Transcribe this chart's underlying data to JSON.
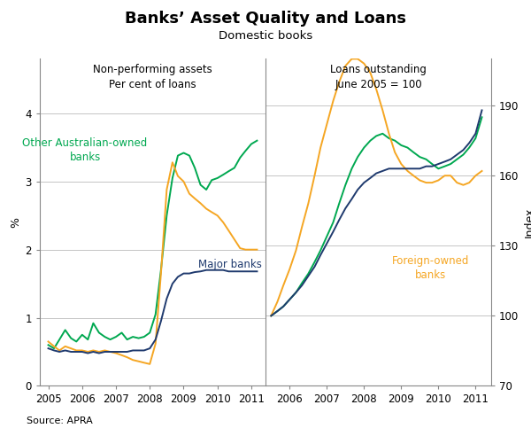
{
  "title": "Banks’ Asset Quality and Loans",
  "subtitle": "Domestic books",
  "left_panel_title": "Non-performing assets\nPer cent of loans",
  "right_panel_title": "Loans outstanding\nJune 2005 = 100",
  "left_ylabel": "%",
  "right_ylabel": "Index",
  "source": "Source: APRA",
  "colors": {
    "green": "#00A850",
    "orange": "#F5A623",
    "navy": "#1F3A6E"
  },
  "left_ylim": [
    0,
    4.8
  ],
  "left_yticks": [
    0,
    1,
    2,
    3,
    4
  ],
  "right_ylim": [
    70,
    210
  ],
  "right_yticks": [
    70,
    100,
    130,
    160,
    190
  ],
  "xticks_left": [
    2005,
    2006,
    2007,
    2008,
    2009,
    2010,
    2011
  ],
  "xticks_right": [
    2006,
    2007,
    2008,
    2009,
    2010,
    2011
  ],
  "left_npa_green": {
    "x": [
      2005.0,
      2005.17,
      2005.33,
      2005.5,
      2005.67,
      2005.83,
      2006.0,
      2006.17,
      2006.33,
      2006.5,
      2006.67,
      2006.83,
      2007.0,
      2007.17,
      2007.33,
      2007.5,
      2007.67,
      2007.83,
      2008.0,
      2008.17,
      2008.33,
      2008.5,
      2008.67,
      2008.83,
      2009.0,
      2009.17,
      2009.33,
      2009.5,
      2009.67,
      2009.83,
      2010.0,
      2010.17,
      2010.33,
      2010.5,
      2010.67,
      2010.83,
      2011.0,
      2011.17
    ],
    "y": [
      0.6,
      0.55,
      0.68,
      0.82,
      0.7,
      0.65,
      0.75,
      0.68,
      0.92,
      0.78,
      0.72,
      0.68,
      0.72,
      0.78,
      0.68,
      0.72,
      0.7,
      0.72,
      0.78,
      1.05,
      1.7,
      2.5,
      3.05,
      3.38,
      3.42,
      3.38,
      3.2,
      2.95,
      2.88,
      3.02,
      3.05,
      3.1,
      3.15,
      3.2,
      3.35,
      3.45,
      3.55,
      3.6
    ]
  },
  "left_npa_orange": {
    "x": [
      2005.0,
      2005.17,
      2005.33,
      2005.5,
      2005.67,
      2005.83,
      2006.0,
      2006.17,
      2006.33,
      2006.5,
      2006.67,
      2006.83,
      2007.0,
      2007.17,
      2007.33,
      2007.5,
      2007.67,
      2007.83,
      2008.0,
      2008.17,
      2008.33,
      2008.5,
      2008.67,
      2008.83,
      2009.0,
      2009.17,
      2009.33,
      2009.5,
      2009.67,
      2009.83,
      2010.0,
      2010.17,
      2010.33,
      2010.5,
      2010.67,
      2010.83,
      2011.0,
      2011.17
    ],
    "y": [
      0.65,
      0.58,
      0.52,
      0.58,
      0.55,
      0.52,
      0.52,
      0.5,
      0.52,
      0.5,
      0.52,
      0.5,
      0.48,
      0.45,
      0.42,
      0.38,
      0.36,
      0.34,
      0.32,
      0.62,
      1.65,
      2.88,
      3.28,
      3.08,
      3.0,
      2.82,
      2.75,
      2.68,
      2.6,
      2.55,
      2.5,
      2.4,
      2.28,
      2.15,
      2.02,
      2.0,
      2.0,
      2.0
    ]
  },
  "left_npa_navy": {
    "x": [
      2005.0,
      2005.17,
      2005.33,
      2005.5,
      2005.67,
      2005.83,
      2006.0,
      2006.17,
      2006.33,
      2006.5,
      2006.67,
      2006.83,
      2007.0,
      2007.17,
      2007.33,
      2007.5,
      2007.67,
      2007.83,
      2008.0,
      2008.17,
      2008.33,
      2008.5,
      2008.67,
      2008.83,
      2009.0,
      2009.17,
      2009.33,
      2009.5,
      2009.67,
      2009.83,
      2010.0,
      2010.17,
      2010.33,
      2010.5,
      2010.67,
      2010.83,
      2011.0,
      2011.17
    ],
    "y": [
      0.55,
      0.52,
      0.5,
      0.52,
      0.5,
      0.5,
      0.5,
      0.48,
      0.5,
      0.48,
      0.5,
      0.5,
      0.5,
      0.5,
      0.5,
      0.52,
      0.52,
      0.52,
      0.55,
      0.68,
      0.95,
      1.28,
      1.5,
      1.6,
      1.65,
      1.65,
      1.67,
      1.68,
      1.7,
      1.7,
      1.7,
      1.7,
      1.68,
      1.68,
      1.68,
      1.68,
      1.68,
      1.68
    ]
  },
  "right_loans_green": {
    "x": [
      2005.5,
      2005.67,
      2005.83,
      2006.0,
      2006.17,
      2006.33,
      2006.5,
      2006.67,
      2006.83,
      2007.0,
      2007.17,
      2007.33,
      2007.5,
      2007.67,
      2007.83,
      2008.0,
      2008.17,
      2008.33,
      2008.5,
      2008.67,
      2008.83,
      2009.0,
      2009.17,
      2009.33,
      2009.5,
      2009.67,
      2009.83,
      2010.0,
      2010.17,
      2010.33,
      2010.5,
      2010.67,
      2010.83,
      2011.0,
      2011.17
    ],
    "y": [
      100,
      102,
      104,
      107,
      110,
      114,
      118,
      123,
      128,
      134,
      140,
      148,
      156,
      163,
      168,
      172,
      175,
      177,
      178,
      176,
      175,
      173,
      172,
      170,
      168,
      167,
      165,
      163,
      164,
      165,
      167,
      169,
      172,
      176,
      185
    ]
  },
  "right_loans_orange": {
    "x": [
      2005.5,
      2005.67,
      2005.83,
      2006.0,
      2006.17,
      2006.33,
      2006.5,
      2006.67,
      2006.83,
      2007.0,
      2007.17,
      2007.33,
      2007.5,
      2007.67,
      2007.83,
      2008.0,
      2008.17,
      2008.33,
      2008.5,
      2008.67,
      2008.83,
      2009.0,
      2009.17,
      2009.33,
      2009.5,
      2009.67,
      2009.83,
      2010.0,
      2010.17,
      2010.33,
      2010.5,
      2010.67,
      2010.83,
      2011.0,
      2011.17
    ],
    "y": [
      100,
      106,
      113,
      120,
      128,
      138,
      148,
      160,
      172,
      182,
      192,
      200,
      207,
      210,
      210,
      208,
      204,
      197,
      188,
      178,
      170,
      165,
      162,
      160,
      158,
      157,
      157,
      158,
      160,
      160,
      157,
      156,
      157,
      160,
      162
    ]
  },
  "right_loans_navy": {
    "x": [
      2005.5,
      2005.67,
      2005.83,
      2006.0,
      2006.17,
      2006.33,
      2006.5,
      2006.67,
      2006.83,
      2007.0,
      2007.17,
      2007.33,
      2007.5,
      2007.67,
      2007.83,
      2008.0,
      2008.17,
      2008.33,
      2008.5,
      2008.67,
      2008.83,
      2009.0,
      2009.17,
      2009.33,
      2009.5,
      2009.67,
      2009.83,
      2010.0,
      2010.17,
      2010.33,
      2010.5,
      2010.67,
      2010.83,
      2011.0,
      2011.17
    ],
    "y": [
      100,
      102,
      104,
      107,
      110,
      113,
      117,
      121,
      126,
      131,
      136,
      141,
      146,
      150,
      154,
      157,
      159,
      161,
      162,
      163,
      163,
      163,
      163,
      163,
      163,
      164,
      164,
      165,
      166,
      167,
      169,
      171,
      174,
      178,
      188
    ]
  }
}
